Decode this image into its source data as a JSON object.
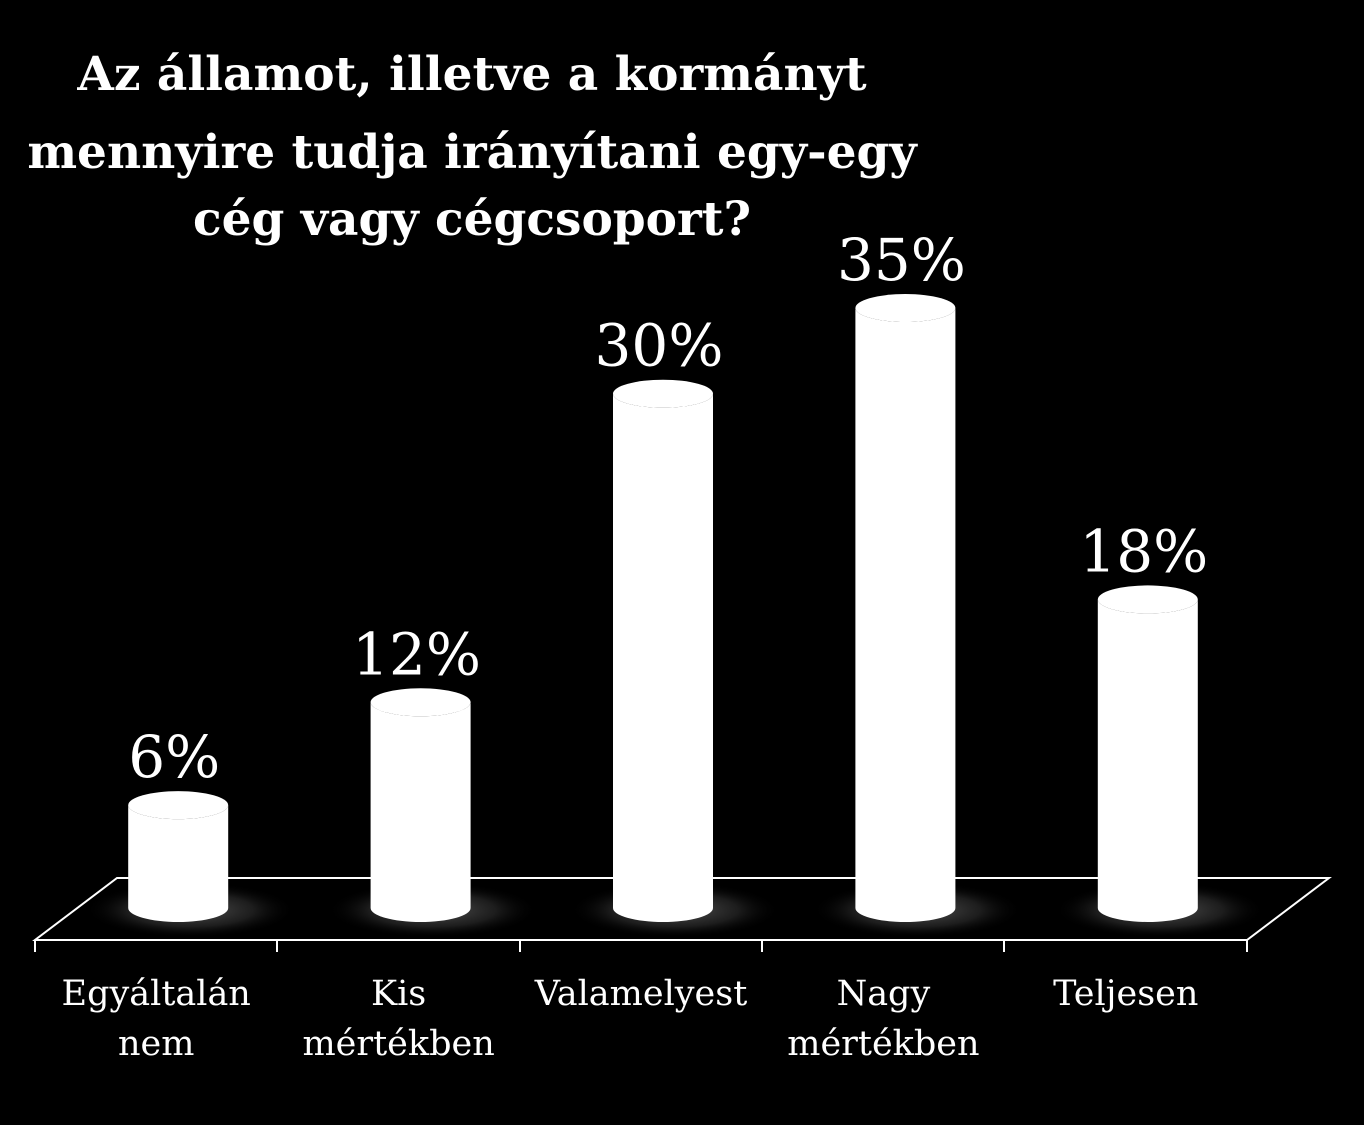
{
  "chart_data": {
    "type": "bar",
    "title_lines": [
      "Az államot, illetve a kormányt",
      "mennyire tudja irányítani egy-egy",
      "cég  vagy cégcsoport?"
    ],
    "categories": [
      [
        "Egyáltalán",
        "nem"
      ],
      [
        "Kis",
        "mértékben"
      ],
      [
        "Valamelyest"
      ],
      [
        "Nagy",
        "mértékben"
      ],
      [
        "Teljesen"
      ]
    ],
    "values": [
      6,
      12,
      30,
      35,
      18
    ],
    "value_labels": [
      "6%",
      "12%",
      "30%",
      "35%",
      "18%"
    ],
    "ylim": [
      0,
      35
    ],
    "grid": false,
    "legend": "none",
    "style": "3d-cylinder",
    "colors": {
      "background": "#000000",
      "bar": "#ffffff",
      "text": "#ffffff",
      "axis": "#ffffff"
    }
  }
}
